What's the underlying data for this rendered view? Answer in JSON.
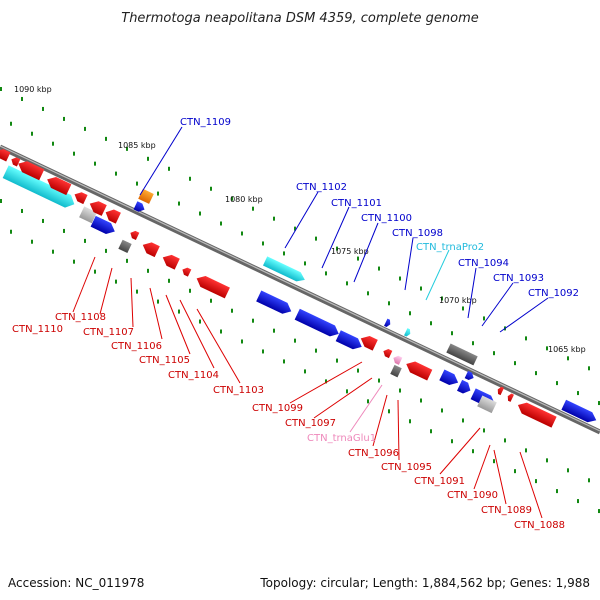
{
  "title": "Thermotoga neapolitana DSM 4359, complete genome",
  "footer": {
    "accession": "Accession: NC_011978",
    "topology": "Topology: circular; Length: 1,884,562 bp; Genes: 1,988"
  },
  "colors": {
    "forward_gene": "#0000dd",
    "reverse_gene": "#dd0000",
    "trna": "#22ccdd",
    "trna_reverse": "#ee99cc",
    "rrna": "#707070",
    "highlight": "#ff8800",
    "backbone": "#777777",
    "tick": "#118811"
  },
  "scale_labels": [
    "1090 kbp",
    "1085 kbp",
    "1080 kbp",
    "1075 kbp",
    "1070 kbp",
    "1065 kbp"
  ],
  "gene_labels": [
    {
      "name": "CTN_1109",
      "strand": "forward"
    },
    {
      "name": "CTN_1102",
      "strand": "forward"
    },
    {
      "name": "CTN_1101",
      "strand": "forward"
    },
    {
      "name": "CTN_1100",
      "strand": "forward"
    },
    {
      "name": "CTN_1098",
      "strand": "forward"
    },
    {
      "name": "CTN_trnaPro2",
      "strand": "trna"
    },
    {
      "name": "CTN_1094",
      "strand": "forward"
    },
    {
      "name": "CTN_1093",
      "strand": "forward"
    },
    {
      "name": "CTN_1092",
      "strand": "forward"
    },
    {
      "name": "CTN_1108",
      "strand": "reverse"
    },
    {
      "name": "CTN_1110",
      "strand": "reverse"
    },
    {
      "name": "CTN_1107",
      "strand": "reverse"
    },
    {
      "name": "CTN_1106",
      "strand": "reverse"
    },
    {
      "name": "CTN_1105",
      "strand": "reverse"
    },
    {
      "name": "CTN_1104",
      "strand": "reverse"
    },
    {
      "name": "CTN_1103",
      "strand": "reverse"
    },
    {
      "name": "CTN_1099",
      "strand": "reverse"
    },
    {
      "name": "CTN_1097",
      "strand": "reverse"
    },
    {
      "name": "CTN_trnaGlu1",
      "strand": "trna_reverse"
    },
    {
      "name": "CTN_1096",
      "strand": "reverse"
    },
    {
      "name": "CTN_1095",
      "strand": "reverse"
    },
    {
      "name": "CTN_1091",
      "strand": "reverse"
    },
    {
      "name": "CTN_1090",
      "strand": "reverse"
    },
    {
      "name": "CTN_1089",
      "strand": "reverse"
    },
    {
      "name": "CTN_1088",
      "strand": "reverse"
    }
  ]
}
